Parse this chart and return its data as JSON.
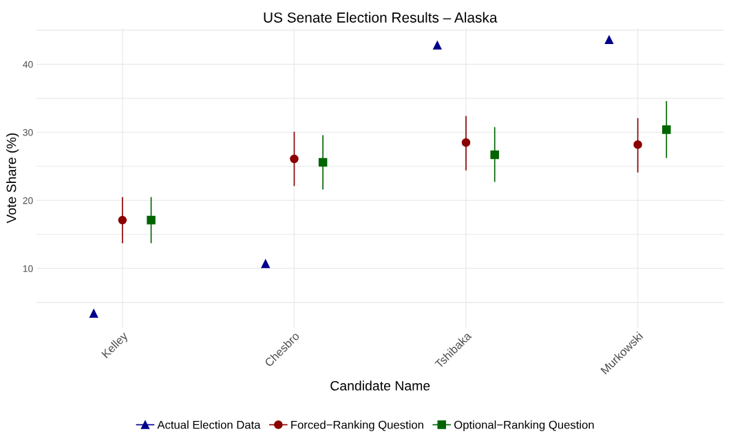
{
  "chart_data": {
    "type": "scatter",
    "title": "US Senate Election Results – Alaska",
    "xlabel": "Candidate Name",
    "ylabel": "Vote Share (%)",
    "categories": [
      "Kelley",
      "Chesbro",
      "Tshibaka",
      "Murkowski"
    ],
    "series": [
      {
        "name": "Actual Election Data",
        "color": "#00008b",
        "marker": "triangle",
        "values": [
          3.4,
          10.7,
          42.8,
          43.6
        ]
      },
      {
        "name": "Forced−Ranking Question",
        "color": "#8b0000",
        "marker": "circle",
        "values": [
          17.1,
          26.1,
          28.5,
          28.2
        ],
        "errors": [
          [
            13.8,
            20.4
          ],
          [
            22.2,
            30.0
          ],
          [
            24.5,
            32.3
          ],
          [
            24.2,
            32.0
          ]
        ]
      },
      {
        "name": "Optional−Ranking Question",
        "color": "#006400",
        "marker": "square",
        "values": [
          17.1,
          25.6,
          26.7,
          30.4
        ],
        "errors": [
          [
            13.8,
            20.4
          ],
          [
            21.7,
            29.5
          ],
          [
            22.8,
            30.7
          ],
          [
            26.3,
            34.5
          ]
        ]
      }
    ],
    "ylim": [
      1.3,
      45.3
    ],
    "yticks": [
      {
        "value": 5,
        "label": null
      },
      10,
      {
        "value": 15,
        "label": null
      },
      20,
      {
        "value": 25,
        "label": null
      },
      30,
      {
        "value": 35,
        "label": null
      },
      40,
      {
        "value": 45,
        "label": null
      }
    ],
    "grid": true,
    "legend": "bottom"
  }
}
